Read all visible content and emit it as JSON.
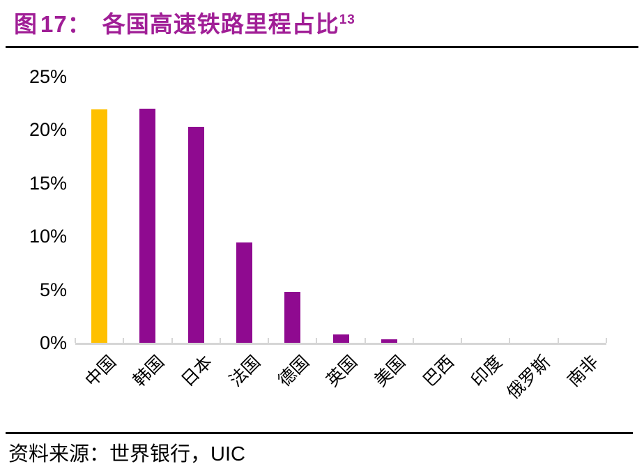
{
  "header": {
    "figure_word": "图",
    "figure_number": "17：",
    "title": "各国高速铁路里程占比",
    "footnote_ref": "13"
  },
  "footer": {
    "source_label": "资料来源：",
    "source_body": "世界银行，",
    "source_suffix": "UIC"
  },
  "colors": {
    "title": "#A01E96",
    "rule": "#000000",
    "text": "#000000"
  },
  "chart_data": {
    "type": "bar",
    "title": "各国高速铁路里程占比",
    "categories": [
      "中国",
      "韩国",
      "日本",
      "法国",
      "德国",
      "英国",
      "美国",
      "巴西",
      "印度",
      "俄罗斯",
      "南非"
    ],
    "category_names_en": [
      "china",
      "south-korea",
      "japan",
      "france",
      "germany",
      "uk",
      "usa",
      "brazil",
      "india",
      "russia",
      "south-africa"
    ],
    "values": [
      21.9,
      22,
      20.3,
      9.4,
      4.8,
      0.8,
      0.3,
      0,
      0,
      0,
      0
    ],
    "unit": "%",
    "highlight_index": 0,
    "highlight_color": "#FFC000",
    "bar_color": "#8F0A90",
    "axis_color": "#D6D6D6",
    "xlabel": "",
    "ylabel": "",
    "ylim": [
      0,
      25
    ],
    "ytick_step": 5,
    "ytick_suffix": "%",
    "grid": false,
    "legend": "none",
    "x_label_rotation": -45
  }
}
